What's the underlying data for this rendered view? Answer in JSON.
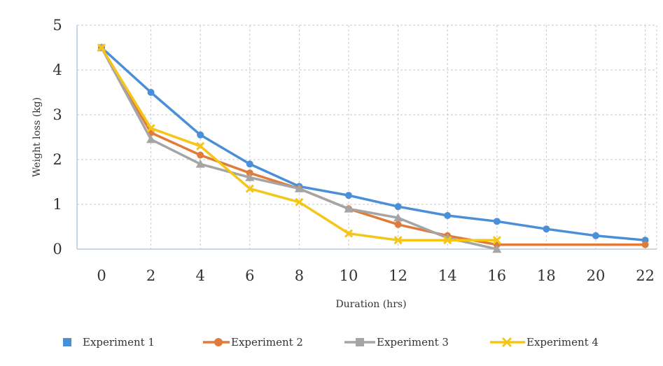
{
  "chart_data": {
    "type": "line",
    "title": "",
    "xlabel": "Duration (hrs)",
    "ylabel": "Weight loss (kg)",
    "xlim": [
      0,
      22
    ],
    "ylim": [
      0,
      5
    ],
    "x_ticks": [
      "0",
      "2",
      "4",
      "6",
      "8",
      "10",
      "12",
      "14",
      "16",
      "18",
      "20",
      "22"
    ],
    "y_ticks": [
      "0",
      "1",
      "2",
      "3",
      "4",
      "5"
    ],
    "grid": true,
    "legend_position": "bottom",
    "series": [
      {
        "name": "Experiment 1",
        "color": "#4a8fd8",
        "marker": "circle",
        "x": [
          0,
          2,
          4,
          6,
          8,
          10,
          12,
          14,
          16,
          18,
          20,
          22
        ],
        "values": [
          4.5,
          3.5,
          2.55,
          1.9,
          1.4,
          1.2,
          0.95,
          0.75,
          0.62,
          0.45,
          0.3,
          0.2
        ]
      },
      {
        "name": "Experiment 2",
        "color": "#e07b39",
        "marker": "circle",
        "x": [
          0,
          2,
          4,
          6,
          8,
          10,
          12,
          14,
          16,
          22
        ],
        "values": [
          4.5,
          2.6,
          2.1,
          1.7,
          1.35,
          0.9,
          0.55,
          0.3,
          0.1,
          0.1
        ]
      },
      {
        "name": "Experiment 3",
        "color": "#a5a5a5",
        "marker": "triangle",
        "x": [
          0,
          2,
          4,
          6,
          8,
          10,
          12,
          14,
          16
        ],
        "values": [
          4.5,
          2.45,
          1.9,
          1.6,
          1.35,
          0.9,
          0.7,
          0.25,
          0.0
        ]
      },
      {
        "name": "Experiment 4",
        "color": "#f5c518",
        "marker": "x",
        "x": [
          0,
          2,
          4,
          6,
          8,
          10,
          12,
          14,
          16
        ],
        "values": [
          4.5,
          2.7,
          2.3,
          1.35,
          1.05,
          0.35,
          0.2,
          0.2,
          0.2
        ]
      }
    ]
  },
  "legend": {
    "items": [
      {
        "label": "Experiment 1",
        "marker": "square"
      },
      {
        "label": "Experiment 2",
        "marker": "circle"
      },
      {
        "label": "Experiment 3",
        "marker": "square"
      },
      {
        "label": "Experiment 4",
        "marker": "x"
      }
    ]
  }
}
